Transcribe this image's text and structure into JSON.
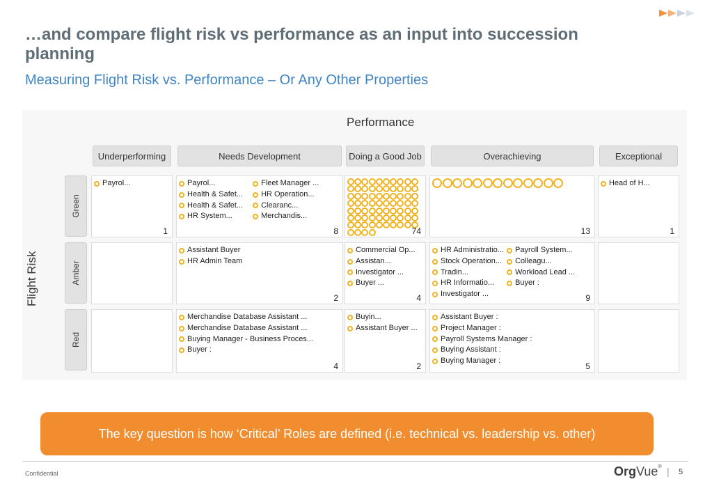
{
  "slide": {
    "title": "…and compare flight risk vs performance as an input into succession planning",
    "subtitle": "Measuring Flight Risk vs. Performance – Or Any Other Properties",
    "callout": "The key question is how ‘Critical’ Roles are defined (i.e. technical vs. leadership vs. other)",
    "confidential": "Confidential",
    "logo_bold": "Org",
    "logo_rest": "Vue",
    "logo_mark": "®",
    "separator": "|",
    "page_number": "5"
  },
  "colors": {
    "title": "#5f6d76",
    "subtitle": "#3f84c4",
    "callout_bg": "#f18d2e",
    "dot": "#f1b220",
    "header_bg": "#e2e2e2"
  },
  "matrix": {
    "x_axis_label": "Performance",
    "y_axis_label": "Flight Risk",
    "columns": [
      "Underperforming",
      "Needs Development",
      "Doing a Good Job",
      "Overachieving",
      "Exceptional"
    ],
    "rows": [
      "Green",
      "Amber",
      "Red"
    ],
    "cells": {
      "green": {
        "underperforming": {
          "count": "1",
          "entries": [
            [
              "Payrol..."
            ]
          ]
        },
        "needs_development": {
          "count": "8",
          "entries": [
            [
              "Payrol...",
              "Health & Safet...",
              "Health & Safet...",
              "HR System..."
            ],
            [
              "Fleet Manager ...",
              "HR Operation...",
              "Clearanc...",
              "Merchandis..."
            ]
          ]
        },
        "doing_good_job": {
          "count": "74",
          "dots": 74
        },
        "overachieving": {
          "count": "13",
          "dots": 13
        },
        "exceptional": {
          "count": "1",
          "entries": [
            [
              "Head of H..."
            ]
          ]
        }
      },
      "amber": {
        "underperforming": {
          "count": "",
          "entries": []
        },
        "needs_development": {
          "count": "2",
          "entries": [
            [
              "Assistant Buyer",
              "HR Admin Team"
            ]
          ]
        },
        "doing_good_job": {
          "count": "4",
          "entries": [
            [
              "Commercial Op...",
              "Assistan...",
              "Investigator ...",
              "Buyer ..."
            ]
          ]
        },
        "overachieving": {
          "count": "9",
          "entries": [
            [
              "HR Administratio...",
              "Stock Operation...",
              "Tradin...",
              "HR Informatio...",
              "Investigator ..."
            ],
            [
              "Payroll System...",
              "Colleagu...",
              "Workload Lead ...",
              "Buyer :"
            ]
          ]
        },
        "exceptional": {
          "count": "",
          "entries": []
        }
      },
      "red": {
        "underperforming": {
          "count": "",
          "entries": []
        },
        "needs_development": {
          "count": "4",
          "entries": [
            [
              "Merchandise Database Assistant ...",
              "Merchandise Database Assistant ...",
              "Buying Manager - Business Proces...",
              "Buyer :"
            ]
          ]
        },
        "doing_good_job": {
          "count": "2",
          "entries": [
            [
              "Buyin...",
              "Assistant Buyer ..."
            ]
          ]
        },
        "overachieving": {
          "count": "5",
          "entries": [
            [
              "Assistant Buyer :",
              "Project Manager :",
              "Payroll Systems Manager :",
              "Buying Assistant :",
              "Buying Manager :"
            ]
          ]
        },
        "exceptional": {
          "count": "",
          "entries": []
        }
      }
    }
  }
}
